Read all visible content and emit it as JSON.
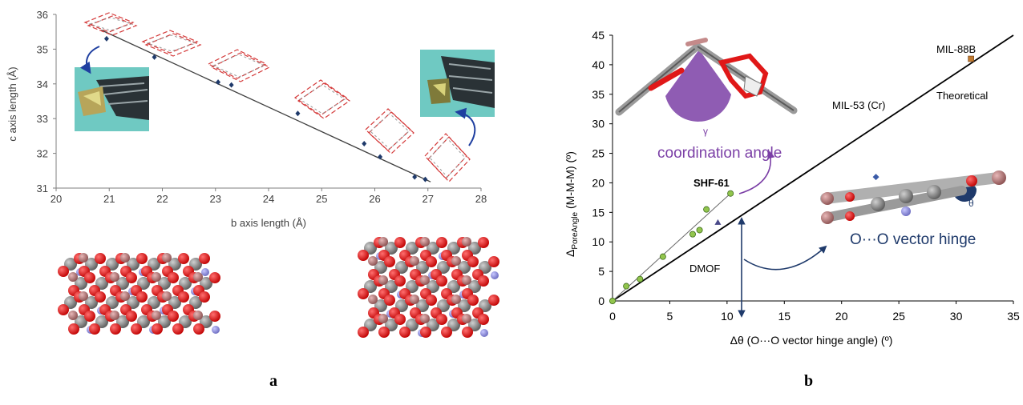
{
  "figure": {
    "panel_a_label": "a",
    "panel_b_label": "b"
  },
  "colors": {
    "axis": "#555555",
    "marker_a": "#1f3a6b",
    "green_points": "#92c54d",
    "theory_line": "#000000",
    "purple": "#7b3fa6",
    "navy": "#1f3a6b",
    "photo_bg": "#6fc9c2",
    "atom_red": "#e01818",
    "atom_gray": "#8a8a8a",
    "atom_blue": "#8f8fd6",
    "atom_pink": "#c48a8a"
  },
  "chart_data": [
    {
      "id": "panel-a",
      "type": "scatter",
      "title": "",
      "xlabel": "b axis length (Å)",
      "ylabel": "c axis length (Å)",
      "xlim": [
        20,
        28
      ],
      "ylim": [
        31,
        36
      ],
      "xticks": [
        "20",
        "21",
        "22",
        "23",
        "24",
        "25",
        "26",
        "27",
        "28"
      ],
      "yticks": [
        "31",
        "32",
        "33",
        "34",
        "35",
        "36"
      ],
      "grid": false,
      "series": [
        {
          "x": [
            20.95,
            21.85,
            23.05,
            23.3,
            24.55,
            25.8,
            26.1,
            26.75,
            26.95
          ],
          "y": [
            35.3,
            34.77,
            34.05,
            33.97,
            33.15,
            32.28,
            31.9,
            31.32,
            31.25
          ]
        }
      ],
      "fit_line": {
        "x": [
          20.85,
          27.05
        ],
        "y": [
          35.55,
          31.18
        ]
      },
      "images": [
        "crystal-photo",
        "crystal-photo",
        "framework-structure",
        "framework-structure",
        "lattice-rhombus"
      ]
    },
    {
      "id": "panel-b",
      "type": "scatter",
      "title": "",
      "xlabel": "Δθ (O···O vector hinge angle) (º)",
      "ylabel_main": "Δ",
      "ylabel_sub": "PoreAngle",
      "ylabel_rest": " (M-M-M) (º)",
      "xlim": [
        0,
        35
      ],
      "ylim": [
        0,
        45
      ],
      "xticks": [
        "0",
        "5",
        "10",
        "15",
        "20",
        "25",
        "30",
        "35"
      ],
      "yticks": [
        "0",
        "5",
        "10",
        "15",
        "20",
        "25",
        "30",
        "35",
        "40",
        "45"
      ],
      "grid": false,
      "theoretical_line": {
        "x": [
          0,
          35
        ],
        "y": [
          0,
          45
        ]
      },
      "series": [
        {
          "marker": "circle",
          "x": [
            0,
            1.2,
            2.4,
            4.4,
            7.0,
            7.6,
            8.2,
            10.3
          ],
          "y": [
            0,
            2.5,
            3.7,
            7.5,
            11.3,
            12.0,
            15.5,
            18.2
          ]
        },
        {
          "marker": "triangle",
          "x": [
            9.2
          ],
          "y": [
            13.3
          ]
        },
        {
          "marker": "diamond",
          "x": [
            23.0
          ],
          "y": [
            21.0
          ]
        },
        {
          "marker": "square",
          "x": [
            31.3
          ],
          "y": [
            41.0
          ]
        }
      ],
      "annotations": {
        "mil88b": "MIL-88B",
        "theoretical": "Theoretical",
        "mil53": "MIL-53 (Cr)",
        "shf61": "SHF-61",
        "dmof": "DMOF",
        "gamma": "γ",
        "coordination": "coordination angle",
        "theta": "θ",
        "hinge": "O···O vector hinge"
      }
    }
  ]
}
